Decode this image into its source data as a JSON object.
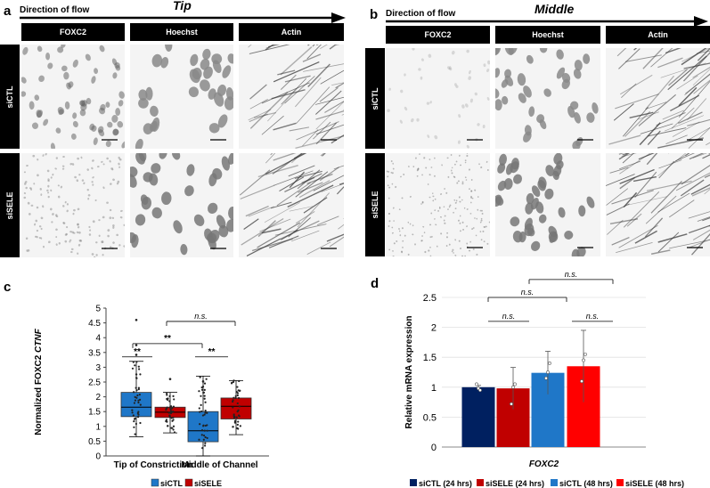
{
  "panel_a": {
    "letter": "a",
    "flow": "Direction of flow",
    "title": "Tip",
    "columns": [
      "FOXC2",
      "Hoechst",
      "Actin"
    ],
    "rows": [
      "siCTL",
      "siSELE"
    ]
  },
  "panel_b": {
    "letter": "b",
    "flow": "Direction of flow",
    "title": "Middle",
    "columns": [
      "FOXC2",
      "Hoechst",
      "Actin"
    ],
    "rows": [
      "siCTL",
      "siSELE"
    ]
  },
  "panel_c": {
    "letter": "c",
    "ylabel_prefix": "Normalized FOXC2 ",
    "ylabel_italic": "CTNF",
    "sig": [
      "**",
      "**",
      "n.s.",
      "**"
    ],
    "legend": [
      "siCTL",
      "siSELE"
    ],
    "colors": {
      "siCTL": "#1f77c8",
      "siSELE": "#c00000"
    }
  },
  "panel_d": {
    "letter": "d",
    "ylabel": "Relative mRNA expression",
    "xlabel": "FOXC2",
    "sig": [
      "n.s.",
      "n.s.",
      "n.s.",
      "n.s."
    ],
    "legend": [
      "siCTL (24 hrs)",
      "siSELE (24 hrs)",
      "siCTL (48 hrs)",
      "siSELE (48 hrs)"
    ],
    "colors": [
      "#002060",
      "#c00000",
      "#1f77c8",
      "#ff0000"
    ]
  },
  "chart_data": [
    {
      "type": "box",
      "title": "",
      "xlabel": "",
      "ylabel": "Normalized FOXC2 CTNF",
      "ylim": [
        0,
        5
      ],
      "yticks": [
        "0",
        "0.5",
        "1",
        "1.5",
        "2",
        "2.5",
        "3",
        "3.5",
        "4",
        "4.5",
        "5"
      ],
      "categories": [
        "Tip of Constriction",
        "Middle of Channel"
      ],
      "series": [
        {
          "name": "siCTL",
          "stats": [
            {
              "min": 0.65,
              "q1": 1.33,
              "median": 1.65,
              "q3": 2.15,
              "max": 3.2
            },
            {
              "min": 0.0,
              "q1": 0.48,
              "median": 0.85,
              "q3": 1.5,
              "max": 2.7
            }
          ]
        },
        {
          "name": "siSELE",
          "stats": [
            {
              "min": 0.78,
              "q1": 1.3,
              "median": 1.48,
              "q3": 1.65,
              "max": 2.15
            },
            {
              "min": 0.72,
              "q1": 1.25,
              "median": 1.68,
              "q3": 1.96,
              "max": 2.55
            }
          ]
        }
      ],
      "outliers": [
        {
          "box": 0,
          "values": [
            4.6,
            3.75,
            3.42
          ]
        },
        {
          "box": 1,
          "values": [
            2.6
          ]
        },
        {
          "box": 2,
          "values": [
            2.52
          ]
        }
      ]
    },
    {
      "type": "bar",
      "title": "",
      "xlabel": "FOXC2",
      "ylabel": "Relative mRNA expression",
      "ylim": [
        0,
        2.5
      ],
      "yticks": [
        "0",
        "0.5",
        "1",
        "1.5",
        "2",
        "2.5"
      ],
      "categories": [
        "siCTL (24 hrs)",
        "siSELE (24 hrs)",
        "siCTL (48 hrs)",
        "siSELE (48 hrs)"
      ],
      "values": [
        1.0,
        0.98,
        1.24,
        1.35
      ],
      "errors": [
        0.03,
        0.35,
        0.36,
        0.6
      ],
      "points": [
        [
          1.05,
          0.98,
          0.95
        ],
        [
          0.72,
          1.0,
          1.05
        ],
        [
          1.15,
          1.25,
          1.4
        ],
        [
          1.1,
          1.45,
          1.55
        ]
      ]
    }
  ]
}
